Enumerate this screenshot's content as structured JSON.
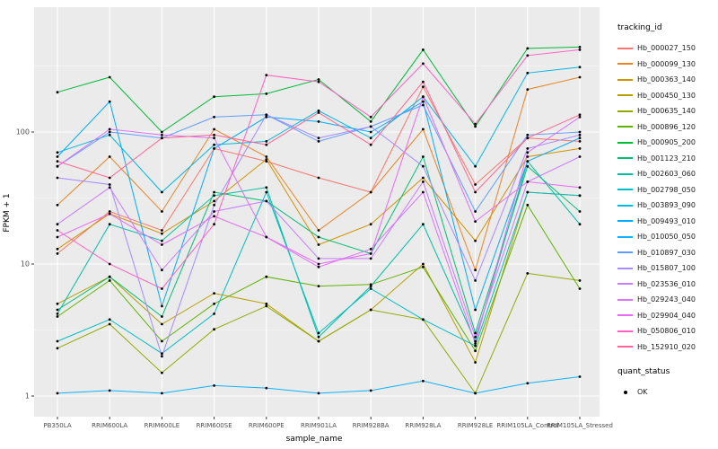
{
  "chart_data": {
    "type": "line",
    "title": "",
    "xlabel": "sample_name",
    "ylabel": "FPKM + 1",
    "y_scale": "log10",
    "y_ticks": [
      1,
      10,
      100
    ],
    "y_minor_ticks": [
      3.1623,
      31.623,
      316.23
    ],
    "ylim": [
      0.9,
      700
    ],
    "grid": true,
    "panel_bg": "#EBEBEB",
    "grid_major_color": "#FFFFFF",
    "grid_minor_color": "#F5F5F5",
    "point_color": "#000000",
    "legend_position": "right",
    "categories": [
      "PB350LA",
      "RRIM600LA",
      "RRIM600LE",
      "RRIM600SE",
      "RRIM600PE",
      "RRIM901LA",
      "RRIM928BA",
      "RRIM928LA",
      "RRIM928LE",
      "RRIM105LA_Control",
      "RRIM105LA_Stressed"
    ],
    "series": [
      {
        "name": "Hb_000027_150",
        "color": "#F8766D",
        "values": [
          12,
          25,
          18,
          75,
          60,
          45,
          35,
          220,
          40,
          90,
          85
        ]
      },
      {
        "name": "Hb_000099_130",
        "color": "#E88526",
        "values": [
          28,
          65,
          25,
          105,
          65,
          18,
          35,
          105,
          9,
          210,
          260
        ]
      },
      {
        "name": "Hb_000363_140",
        "color": "#D39200",
        "values": [
          13,
          24,
          17,
          30,
          62,
          14,
          20,
          45,
          15,
          65,
          75
        ]
      },
      {
        "name": "Hb_000450_130",
        "color": "#B79F00",
        "values": [
          5,
          8,
          3.5,
          6,
          5,
          2.6,
          4.5,
          10,
          1.8,
          35,
          33
        ]
      },
      {
        "name": "Hb_000635_140",
        "color": "#93AA00",
        "values": [
          2.3,
          3.5,
          1.5,
          3.2,
          4.8,
          2.6,
          4.5,
          3.8,
          1.05,
          8.5,
          7.5
        ]
      },
      {
        "name": "Hb_000896_120",
        "color": "#5EB300",
        "values": [
          4,
          7.5,
          2.6,
          5,
          8,
          6.8,
          7,
          9.5,
          2.2,
          28,
          6.5
        ]
      },
      {
        "name": "Hb_000905_200",
        "color": "#00BA38",
        "values": [
          200,
          260,
          100,
          185,
          195,
          250,
          120,
          420,
          110,
          430,
          440
        ]
      },
      {
        "name": "Hb_001123_210",
        "color": "#00BF74",
        "values": [
          4.5,
          8,
          4,
          35,
          30,
          16,
          12,
          65,
          3,
          55,
          25
        ]
      },
      {
        "name": "Hb_002603_060",
        "color": "#00C19F",
        "values": [
          4.2,
          20,
          15,
          33,
          38,
          2.8,
          6.8,
          20,
          2.6,
          60,
          20
        ]
      },
      {
        "name": "Hb_002798_050",
        "color": "#00BFC4",
        "values": [
          2.6,
          3.8,
          2.1,
          4.2,
          35,
          3.0,
          6.5,
          3.8,
          2.4,
          35,
          33
        ]
      },
      {
        "name": "Hb_003893_090",
        "color": "#00B9E3",
        "values": [
          70,
          95,
          35,
          80,
          85,
          145,
          90,
          185,
          55,
          280,
          310
        ]
      },
      {
        "name": "Hb_009493_010",
        "color": "#00ADFA",
        "values": [
          65,
          170,
          4.8,
          75,
          130,
          120,
          100,
          170,
          4.5,
          60,
          90
        ]
      },
      {
        "name": "Hb_010050_050",
        "color": "#0FB2FF",
        "values": [
          1.05,
          1.1,
          1.05,
          1.2,
          1.15,
          1.05,
          1.1,
          1.3,
          1.05,
          1.25,
          1.4
        ]
      },
      {
        "name": "Hb_010897_030",
        "color": "#619CFF",
        "values": [
          55,
          100,
          90,
          130,
          135,
          85,
          110,
          160,
          25,
          95,
          100
        ]
      },
      {
        "name": "Hb_015807_100",
        "color": "#A58AFF",
        "values": [
          45,
          40,
          2.0,
          28,
          135,
          90,
          110,
          55,
          7.5,
          75,
          95
        ]
      },
      {
        "name": "Hb_023536_010",
        "color": "#C77CFF",
        "values": [
          20,
          38,
          9,
          25,
          30,
          11,
          11,
          42,
          2.8,
          42,
          65
        ]
      },
      {
        "name": "Hb_029243_040",
        "color": "#DB72FB",
        "values": [
          55,
          105,
          95,
          90,
          16,
          9.5,
          13,
          35,
          2.5,
          70,
          130
        ]
      },
      {
        "name": "Hb_029904_040",
        "color": "#E76BF3",
        "values": [
          16,
          24,
          14,
          23,
          16,
          10,
          12,
          185,
          21,
          42,
          38
        ]
      },
      {
        "name": "Hb_050806_010",
        "color": "#FF61C3",
        "values": [
          18,
          10,
          6.5,
          20,
          270,
          240,
          130,
          330,
          115,
          380,
          420
        ]
      },
      {
        "name": "Hb_152910_020",
        "color": "#FF6592",
        "values": [
          60,
          45,
          90,
          95,
          80,
          140,
          80,
          240,
          35,
          90,
          135
        ]
      }
    ]
  },
  "legend": {
    "tracking_title": "tracking_id",
    "quant_title": "quant_status",
    "quant_items": [
      "OK"
    ]
  }
}
